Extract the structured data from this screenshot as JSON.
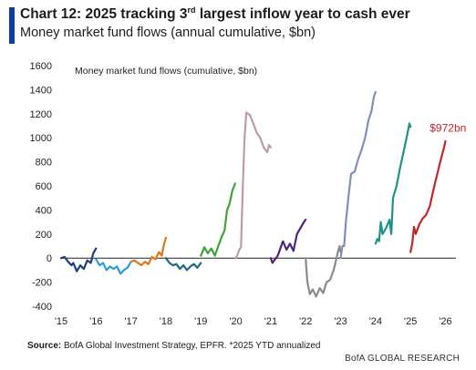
{
  "header": {
    "title_pre": "Chart 12: 2025 tracking 3",
    "title_sup": "rd",
    "title_post": " largest inflow year to cash ever",
    "subtitle": "Money market fund flows (annual cumulative, $bn)"
  },
  "footer": {
    "source_label": "Source:",
    "source_text": " BofA Global Investment Strategy, EPFR. *2025 YTD annualized",
    "brand": "BofA GLOBAL RESEARCH"
  },
  "chart_data": {
    "type": "line",
    "title": "Money market fund flows (cumulative, $bn)",
    "xlabel": "",
    "ylabel": "",
    "ylim": [
      -400,
      1600
    ],
    "xlim": [
      2015,
      2026.3
    ],
    "y_ticks": [
      -400,
      -200,
      0,
      200,
      400,
      600,
      800,
      1000,
      1200,
      1400,
      1600
    ],
    "x_ticks": [
      {
        "x": 2015,
        "label": "'15"
      },
      {
        "x": 2016,
        "label": "'16"
      },
      {
        "x": 2017,
        "label": "'17"
      },
      {
        "x": 2018,
        "label": "'18"
      },
      {
        "x": 2019,
        "label": "'19"
      },
      {
        "x": 2020,
        "label": "'20"
      },
      {
        "x": 2021,
        "label": "'21"
      },
      {
        "x": 2022,
        "label": "'22"
      },
      {
        "x": 2023,
        "label": "'23"
      },
      {
        "x": 2024,
        "label": "'24"
      },
      {
        "x": 2025,
        "label": "'25"
      },
      {
        "x": 2026,
        "label": "'26"
      }
    ],
    "grid": false,
    "annotation": {
      "text": "$972bn",
      "x": 2025.55,
      "y": 1080,
      "color": "#c0282d"
    },
    "series": [
      {
        "year": "2015",
        "color": "#1f3f7a",
        "points": [
          [
            2015.0,
            0
          ],
          [
            2015.1,
            10
          ],
          [
            2015.2,
            -30
          ],
          [
            2015.3,
            -60
          ],
          [
            2015.35,
            -40
          ],
          [
            2015.45,
            -110
          ],
          [
            2015.55,
            -60
          ],
          [
            2015.65,
            -90
          ],
          [
            2015.75,
            -20
          ],
          [
            2015.85,
            -40
          ],
          [
            2015.92,
            40
          ],
          [
            2016.0,
            80
          ]
        ]
      },
      {
        "year": "2016",
        "color": "#2b9bd8",
        "points": [
          [
            2016.0,
            -10
          ],
          [
            2016.1,
            -60
          ],
          [
            2016.2,
            -40
          ],
          [
            2016.3,
            -100
          ],
          [
            2016.4,
            -70
          ],
          [
            2016.5,
            -90
          ],
          [
            2016.6,
            -70
          ],
          [
            2016.7,
            -130
          ],
          [
            2016.8,
            -100
          ],
          [
            2016.9,
            -80
          ],
          [
            2016.98,
            -40
          ]
        ]
      },
      {
        "year": "2017",
        "color": "#e0761b",
        "points": [
          [
            2017.0,
            -30
          ],
          [
            2017.1,
            -20
          ],
          [
            2017.2,
            -40
          ],
          [
            2017.3,
            -60
          ],
          [
            2017.4,
            -30
          ],
          [
            2017.5,
            -50
          ],
          [
            2017.6,
            10
          ],
          [
            2017.7,
            -10
          ],
          [
            2017.8,
            50
          ],
          [
            2017.88,
            20
          ],
          [
            2017.95,
            120
          ],
          [
            2018.0,
            170
          ]
        ]
      },
      {
        "year": "2018",
        "color": "#1a6b7c",
        "points": [
          [
            2018.0,
            0
          ],
          [
            2018.1,
            -40
          ],
          [
            2018.2,
            -60
          ],
          [
            2018.3,
            -50
          ],
          [
            2018.4,
            -90
          ],
          [
            2018.5,
            -60
          ],
          [
            2018.6,
            -100
          ],
          [
            2018.7,
            -70
          ],
          [
            2018.8,
            -50
          ],
          [
            2018.9,
            -80
          ],
          [
            2019.0,
            -40
          ]
        ]
      },
      {
        "year": "2019",
        "color": "#3ea33a",
        "points": [
          [
            2019.0,
            20
          ],
          [
            2019.1,
            90
          ],
          [
            2019.2,
            40
          ],
          [
            2019.3,
            80
          ],
          [
            2019.4,
            20
          ],
          [
            2019.5,
            100
          ],
          [
            2019.6,
            180
          ],
          [
            2019.68,
            230
          ],
          [
            2019.75,
            400
          ],
          [
            2019.82,
            450
          ],
          [
            2019.9,
            560
          ],
          [
            2019.98,
            620
          ]
        ]
      },
      {
        "year": "2020",
        "color": "#c09aa6",
        "points": [
          [
            2020.0,
            0
          ],
          [
            2020.05,
            30
          ],
          [
            2020.1,
            70
          ],
          [
            2020.15,
            90
          ],
          [
            2020.2,
            600
          ],
          [
            2020.25,
            1000
          ],
          [
            2020.3,
            1210
          ],
          [
            2020.4,
            1190
          ],
          [
            2020.5,
            1120
          ],
          [
            2020.6,
            1040
          ],
          [
            2020.7,
            1000
          ],
          [
            2020.8,
            920
          ],
          [
            2020.9,
            880
          ],
          [
            2020.95,
            940
          ],
          [
            2021.0,
            920
          ]
        ]
      },
      {
        "year": "2021",
        "color": "#4b2775",
        "points": [
          [
            2021.0,
            0
          ],
          [
            2021.05,
            -40
          ],
          [
            2021.1,
            -20
          ],
          [
            2021.2,
            20
          ],
          [
            2021.3,
            100
          ],
          [
            2021.35,
            140
          ],
          [
            2021.45,
            70
          ],
          [
            2021.55,
            120
          ],
          [
            2021.65,
            60
          ],
          [
            2021.75,
            200
          ],
          [
            2021.85,
            250
          ],
          [
            2021.95,
            300
          ],
          [
            2022.0,
            320
          ]
        ]
      },
      {
        "year": "2022",
        "color": "#8a8a8a",
        "points": [
          [
            2022.0,
            0
          ],
          [
            2022.05,
            -200
          ],
          [
            2022.12,
            -300
          ],
          [
            2022.2,
            -260
          ],
          [
            2022.3,
            -320
          ],
          [
            2022.4,
            -250
          ],
          [
            2022.5,
            -290
          ],
          [
            2022.6,
            -200
          ],
          [
            2022.7,
            -180
          ],
          [
            2022.8,
            -100
          ],
          [
            2022.85,
            -40
          ],
          [
            2022.92,
            50
          ],
          [
            2022.97,
            100
          ],
          [
            2023.0,
            50
          ]
        ]
      },
      {
        "year": "2023",
        "color": "#7f90b5",
        "points": [
          [
            2023.0,
            0
          ],
          [
            2023.05,
            100
          ],
          [
            2023.1,
            100
          ],
          [
            2023.15,
            300
          ],
          [
            2023.22,
            500
          ],
          [
            2023.3,
            700
          ],
          [
            2023.4,
            720
          ],
          [
            2023.5,
            820
          ],
          [
            2023.6,
            900
          ],
          [
            2023.7,
            1000
          ],
          [
            2023.8,
            1150
          ],
          [
            2023.88,
            1220
          ],
          [
            2023.95,
            1340
          ],
          [
            2024.0,
            1380
          ]
        ]
      },
      {
        "year": "2024",
        "color": "#1e9486",
        "points": [
          [
            2024.0,
            120
          ],
          [
            2024.05,
            160
          ],
          [
            2024.1,
            140
          ],
          [
            2024.15,
            300
          ],
          [
            2024.2,
            200
          ],
          [
            2024.3,
            250
          ],
          [
            2024.4,
            320
          ],
          [
            2024.45,
            200
          ],
          [
            2024.5,
            500
          ],
          [
            2024.6,
            600
          ],
          [
            2024.7,
            750
          ],
          [
            2024.8,
            880
          ],
          [
            2024.9,
            1020
          ],
          [
            2024.97,
            1120
          ],
          [
            2025.0,
            1090
          ]
        ]
      },
      {
        "year": "2025*",
        "color": "#c0282d",
        "points": [
          [
            2025.0,
            50
          ],
          [
            2025.05,
            120
          ],
          [
            2025.1,
            260
          ],
          [
            2025.15,
            200
          ],
          [
            2025.25,
            280
          ],
          [
            2025.35,
            330
          ],
          [
            2025.45,
            360
          ],
          [
            2025.55,
            430
          ],
          [
            2025.65,
            560
          ],
          [
            2025.75,
            680
          ],
          [
            2025.85,
            800
          ],
          [
            2025.95,
            910
          ],
          [
            2026.0,
            972
          ]
        ]
      }
    ]
  }
}
